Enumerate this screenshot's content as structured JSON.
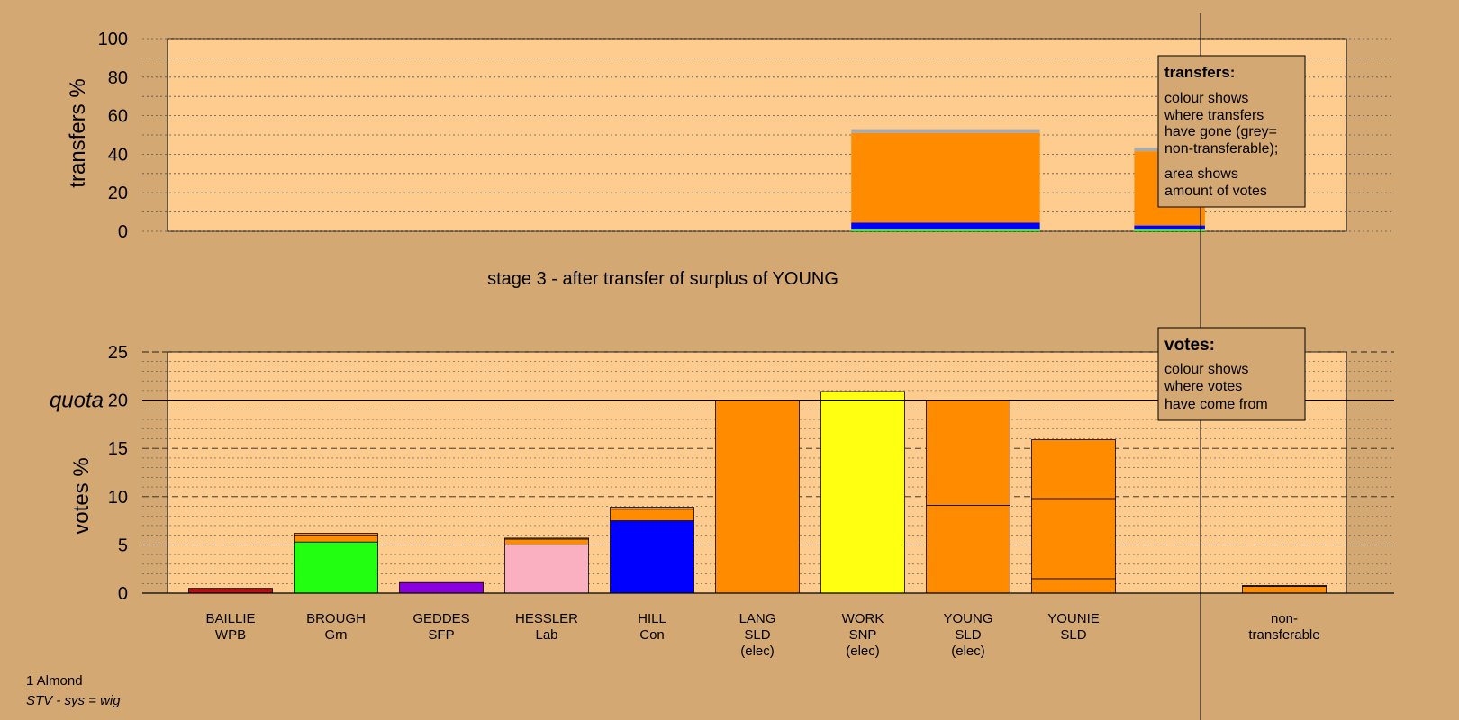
{
  "colors": {
    "background": "#D4A872",
    "plot_bg": "#FFCC8F",
    "WPB": "#B40F14",
    "Grn": "#22FF11",
    "SFP": "#8800DD",
    "Lab": "#FBB0C2",
    "Con": "#0000FF",
    "SLD": "#FF8C00",
    "SNP": "#FFFF11",
    "nontransferable": "#AAAAAA"
  },
  "top_chart": {
    "ylabel": "transfers %",
    "yticks": [
      "0",
      "20",
      "40",
      "60",
      "80",
      "100"
    ]
  },
  "stage_label": "stage 3 - after transfer of surplus of YOUNG",
  "bottom_chart": {
    "ylabel": "votes %",
    "yticks": [
      "0",
      "5",
      "10",
      "15",
      "20",
      "25"
    ],
    "quota_label": "quota"
  },
  "legend_transfers": {
    "title": "transfers:",
    "line1": "colour shows",
    "line2": "where transfers",
    "line3": "have gone (grey=",
    "line4": "non-transferable);",
    "line5": "area shows",
    "line6": "amount of votes"
  },
  "legend_votes": {
    "title": "votes:",
    "line1": "colour shows",
    "line2": "where votes",
    "line3": "have come from"
  },
  "footer": {
    "ward": "1 Almond",
    "system": "STV - sys = wig"
  },
  "chart_data": [
    {
      "type": "bar",
      "ylabel": "transfers %",
      "ylim": [
        0,
        100
      ],
      "grid": true,
      "bars": [
        {
          "x_start": 0.58,
          "x_end": 0.74,
          "segments": [
            {
              "party": "Grn",
              "value": 1
            },
            {
              "party": "Con",
              "value": 3.5
            },
            {
              "party": "SLD",
              "value": 46.5
            },
            {
              "party": "nontransferable",
              "value": 2
            }
          ]
        },
        {
          "x_start": 0.82,
          "x_end": 0.88,
          "segments": [
            {
              "party": "Grn",
              "value": 1
            },
            {
              "party": "Con",
              "value": 2
            },
            {
              "party": "SLD",
              "value": 38.5
            },
            {
              "party": "nontransferable",
              "value": 2
            }
          ]
        }
      ]
    },
    {
      "type": "bar",
      "ylabel": "votes %",
      "ylim": [
        0,
        25
      ],
      "quota": 20,
      "grid": true,
      "categories": [
        {
          "name": "BAILLIE",
          "party": "WPB",
          "note": ""
        },
        {
          "name": "BROUGH",
          "party": "Grn",
          "note": ""
        },
        {
          "name": "GEDDES",
          "party": "SFP",
          "note": ""
        },
        {
          "name": "HESSLER",
          "party": "Lab",
          "note": ""
        },
        {
          "name": "HILL",
          "party": "Con",
          "note": ""
        },
        {
          "name": "LANG",
          "party": "SLD",
          "note": "(elec)"
        },
        {
          "name": "WORK",
          "party": "SNP",
          "note": "(elec)"
        },
        {
          "name": "YOUNG",
          "party": "SLD",
          "note": "(elec)"
        },
        {
          "name": "YOUNIE",
          "party": "SLD",
          "note": ""
        },
        {
          "name": "non-",
          "party": "transferable",
          "note": ""
        }
      ],
      "stacks": [
        [
          {
            "color": "WPB",
            "value": 0.5
          }
        ],
        [
          {
            "color": "Grn",
            "value": 5.3
          },
          {
            "color": "SLD",
            "value": 0.7
          },
          {
            "color": "SLD",
            "value": 0.2
          }
        ],
        [
          {
            "color": "SFP",
            "value": 1.1
          }
        ],
        [
          {
            "color": "Lab",
            "value": 5.0
          },
          {
            "color": "SLD",
            "value": 0.6
          },
          {
            "color": "SLD",
            "value": 0.1
          }
        ],
        [
          {
            "color": "Con",
            "value": 7.5
          },
          {
            "color": "SLD",
            "value": 1.2
          },
          {
            "color": "SLD",
            "value": 0.2
          }
        ],
        [
          {
            "color": "SLD",
            "value": 20.0
          }
        ],
        [
          {
            "color": "SNP",
            "value": 20.9
          }
        ],
        [
          {
            "color": "SLD",
            "value": 9.1
          },
          {
            "color": "SLD",
            "value": 10.9
          }
        ],
        [
          {
            "color": "SLD",
            "value": 1.5
          },
          {
            "color": "SLD",
            "value": 8.3
          },
          {
            "color": "SLD",
            "value": 6.1
          }
        ],
        [
          {
            "color": "SLD",
            "value": 0.7
          },
          {
            "color": "SLD",
            "value": 0.1
          }
        ]
      ]
    }
  ]
}
